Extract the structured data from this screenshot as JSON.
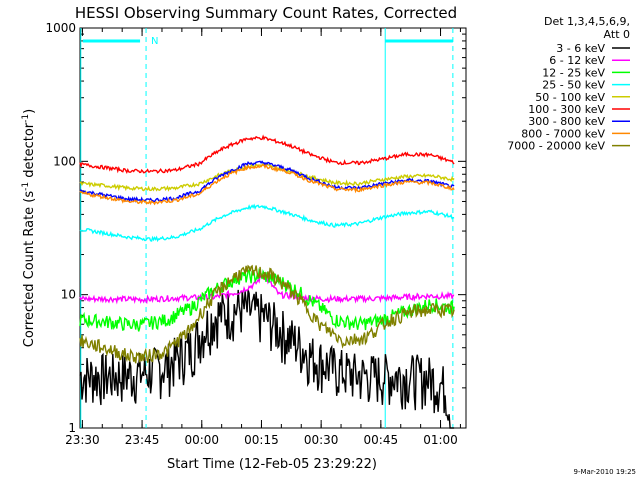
{
  "chart_data": {
    "type": "line",
    "title": "HESSI Observing Summary Count Rates, Corrected",
    "xlabel": "Start Time (12-Feb-05 23:29:22)",
    "ylabel_main": "Corrected Count Rate (s",
    "ylabel_sup1": "-1",
    "ylabel_mid": " detector",
    "ylabel_sup2": "-1",
    "ylabel_end": ")",
    "y_scale": "log",
    "ylim": [
      1,
      1000
    ],
    "xlim_minutes": [
      0,
      97
    ],
    "x_ticks": [
      {
        "t": 0.6,
        "label": "23:30"
      },
      {
        "t": 15.6,
        "label": "23:45"
      },
      {
        "t": 30.6,
        "label": "00:00"
      },
      {
        "t": 45.6,
        "label": "00:15"
      },
      {
        "t": 60.6,
        "label": "00:30"
      },
      {
        "t": 75.6,
        "label": "00:45"
      },
      {
        "t": 90.6,
        "label": "01:00"
      }
    ],
    "y_ticks": [
      {
        "v": 1,
        "label": "1"
      },
      {
        "v": 10,
        "label": "10"
      },
      {
        "v": 100,
        "label": "100"
      },
      {
        "v": 1000,
        "label": "1000"
      }
    ],
    "legend_title_1": "Det 1,3,4,5,6,9,",
    "legend_title_2": "Att 0",
    "legend_placement": "right",
    "footer_date": "9-Mar-2010 19:25",
    "night_marker_label": "N",
    "vertical_markers_minutes": [
      0.2,
      16.6,
      76.7,
      93.7
    ],
    "series": [
      {
        "name": "3 - 6 keV",
        "color": "#000000",
        "x": [
          0,
          8,
          16,
          22,
          28,
          34,
          40,
          46,
          52,
          58,
          64,
          70,
          76,
          82,
          88,
          92,
          93.5,
          94
        ],
        "y": [
          2.5,
          2.5,
          2.6,
          3,
          4,
          7,
          8,
          7,
          5,
          3.5,
          2.8,
          2.5,
          2.5,
          2.5,
          2.4,
          2.0,
          1.0,
          1.0
        ]
      },
      {
        "name": "6 - 12 keV",
        "color": "#ff00ff",
        "x": [
          0,
          8,
          16,
          22,
          28,
          34,
          40,
          44,
          46,
          50,
          56,
          62,
          70,
          76,
          82,
          88,
          94
        ],
        "y": [
          9.3,
          9.3,
          9.2,
          9.4,
          9.5,
          9.6,
          10.5,
          12,
          14,
          10,
          9.5,
          9.3,
          9.3,
          9.4,
          9.6,
          9.8,
          9.7
        ]
      },
      {
        "name": "12 - 25 keV",
        "color": "#00ff00",
        "x": [
          0,
          6,
          12,
          16,
          22,
          28,
          34,
          40,
          46,
          52,
          58,
          64,
          70,
          76,
          82,
          88,
          94
        ],
        "y": [
          6.5,
          6.3,
          6,
          6,
          6.5,
          8,
          11,
          13.5,
          14,
          12,
          9,
          6.5,
          6,
          6.5,
          7.5,
          8.5,
          8
        ]
      },
      {
        "name": "25 - 50 keV",
        "color": "#00ffff",
        "x": [
          0,
          6,
          12,
          18,
          24,
          30,
          36,
          42,
          46,
          52,
          58,
          64,
          70,
          76,
          82,
          88,
          94
        ],
        "y": [
          31,
          29,
          27,
          26,
          27,
          31,
          39,
          45,
          46,
          41,
          36,
          33,
          34,
          38,
          41,
          42,
          38
        ]
      },
      {
        "name": "50 - 100 keV",
        "color": "#cccc00",
        "x": [
          0,
          6,
          12,
          18,
          24,
          30,
          36,
          42,
          46,
          52,
          58,
          64,
          70,
          76,
          82,
          88,
          94
        ],
        "y": [
          68,
          66,
          63,
          62,
          63,
          68,
          81,
          92,
          94,
          86,
          76,
          69,
          68,
          73,
          77,
          78,
          73
        ]
      },
      {
        "name": "100 - 300 keV",
        "color": "#ff0000",
        "x": [
          0,
          6,
          12,
          18,
          24,
          30,
          36,
          42,
          46,
          52,
          58,
          64,
          70,
          76,
          82,
          88,
          94
        ],
        "y": [
          95,
          90,
          85,
          84,
          86,
          96,
          125,
          148,
          150,
          134,
          112,
          98,
          97,
          104,
          113,
          112,
          98
        ]
      },
      {
        "name": "300 - 800 keV",
        "color": "#0000ff",
        "x": [
          0,
          6,
          12,
          18,
          24,
          30,
          36,
          42,
          46,
          52,
          58,
          64,
          70,
          76,
          82,
          88,
          94
        ],
        "y": [
          60,
          56,
          52,
          51,
          53,
          60,
          80,
          96,
          98,
          88,
          74,
          64,
          63,
          68,
          72,
          71,
          64
        ]
      },
      {
        "name": "800 - 7000 keV",
        "color": "#ff8800",
        "x": [
          0,
          6,
          12,
          18,
          24,
          30,
          36,
          42,
          46,
          52,
          58,
          64,
          70,
          76,
          82,
          88,
          94
        ],
        "y": [
          58,
          54,
          50,
          49,
          51,
          57,
          76,
          90,
          92,
          84,
          71,
          62,
          61,
          66,
          70,
          69,
          62
        ]
      },
      {
        "name": "7000 - 20000 keV",
        "color": "#808000",
        "x": [
          0,
          6,
          12,
          16,
          22,
          28,
          34,
          40,
          44,
          48,
          54,
          60,
          66,
          72,
          78,
          84,
          90,
          94
        ],
        "y": [
          4.5,
          4,
          3.5,
          3.4,
          3.8,
          5.5,
          10,
          14.5,
          15,
          14,
          10,
          6,
          4.5,
          4.8,
          6.5,
          7.5,
          7.8,
          7.5
        ]
      }
    ]
  }
}
